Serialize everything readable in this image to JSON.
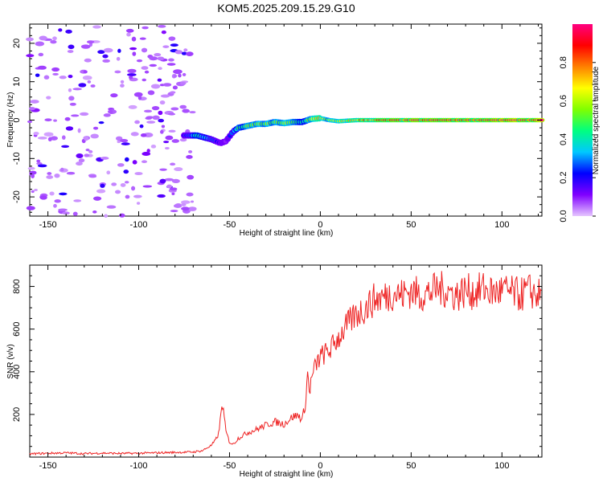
{
  "chart_data": [
    {
      "type": "heatmap",
      "title": "KOM5.2025.209.15.29.G10",
      "xlabel": "Height of straight line (km)",
      "ylabel": "Frequency (Hz)",
      "xlim": [
        -160,
        122
      ],
      "ylim": [
        -25,
        25
      ],
      "x_ticks": [
        -150,
        -100,
        -50,
        0,
        50,
        100
      ],
      "y_ticks": [
        -20,
        -10,
        0,
        10,
        20
      ],
      "colorbar": {
        "label": "Normalized spectral amplitude",
        "range": [
          0,
          1
        ],
        "ticks": [
          "0.0",
          "0.2",
          "0.4",
          "0.6",
          "0.8"
        ],
        "colormap": [
          "#e6c6ff",
          "#8000ff",
          "#0000ff",
          "#00c8ff",
          "#00ff80",
          "#80ff00",
          "#ffff00",
          "#ff8000",
          "#ff0000",
          "#ff0080"
        ]
      },
      "signal_track": {
        "x": [
          -75,
          -68,
          -60,
          -55,
          -52,
          -48,
          -45,
          -40,
          -35,
          -30,
          -25,
          -20,
          -15,
          -10,
          -5,
          0,
          5,
          10,
          20,
          40,
          60,
          80,
          100,
          122
        ],
        "frequency": [
          -4,
          -4,
          -5,
          -6,
          -5.5,
          -3,
          -2,
          -1.5,
          -1,
          -1,
          -0.5,
          -0.8,
          -0.5,
          -0.5,
          0.3,
          0.5,
          0,
          -0.3,
          0,
          0,
          0,
          0,
          0,
          0
        ],
        "amplitude": [
          0.2,
          0.4,
          0.3,
          0.15,
          0.1,
          0.3,
          0.45,
          0.5,
          0.55,
          0.55,
          0.5,
          0.6,
          0.5,
          0.4,
          0.6,
          0.7,
          0.55,
          0.6,
          0.75,
          0.85,
          0.9,
          0.92,
          0.95,
          0.95
        ]
      },
      "noise_region_x": [
        -160,
        -70
      ]
    },
    {
      "type": "line",
      "xlabel": "Height of straight line (km)",
      "ylabel": "SNR (v/v)",
      "xlim": [
        -160,
        122
      ],
      "ylim": [
        0,
        900
      ],
      "x_ticks": [
        -150,
        -100,
        -50,
        0,
        50,
        100
      ],
      "y_ticks": [
        200,
        400,
        600,
        800
      ],
      "color": "#ee2222",
      "x": [
        -160,
        -150,
        -140,
        -130,
        -120,
        -110,
        -100,
        -90,
        -80,
        -70,
        -65,
        -60,
        -58,
        -56,
        -55,
        -54,
        -53,
        -52,
        -50,
        -48,
        -45,
        -40,
        -35,
        -30,
        -25,
        -20,
        -18,
        -15,
        -12,
        -10,
        -8,
        -7,
        -6,
        -5,
        -3,
        0,
        5,
        10,
        15,
        20,
        25,
        30,
        35,
        40,
        45,
        50,
        55,
        60,
        65,
        70,
        75,
        80,
        85,
        90,
        95,
        100,
        105,
        110,
        115,
        120,
        122
      ],
      "y": [
        15,
        18,
        20,
        16,
        19,
        17,
        18,
        20,
        22,
        24,
        30,
        55,
        75,
        110,
        175,
        260,
        190,
        120,
        70,
        60,
        90,
        115,
        130,
        150,
        165,
        155,
        170,
        190,
        195,
        175,
        260,
        400,
        300,
        360,
        420,
        470,
        500,
        560,
        620,
        670,
        700,
        740,
        750,
        770,
        760,
        780,
        760,
        770,
        790,
        780,
        760,
        780,
        770,
        790,
        770,
        780,
        770,
        760,
        780,
        760,
        750
      ]
    }
  ]
}
